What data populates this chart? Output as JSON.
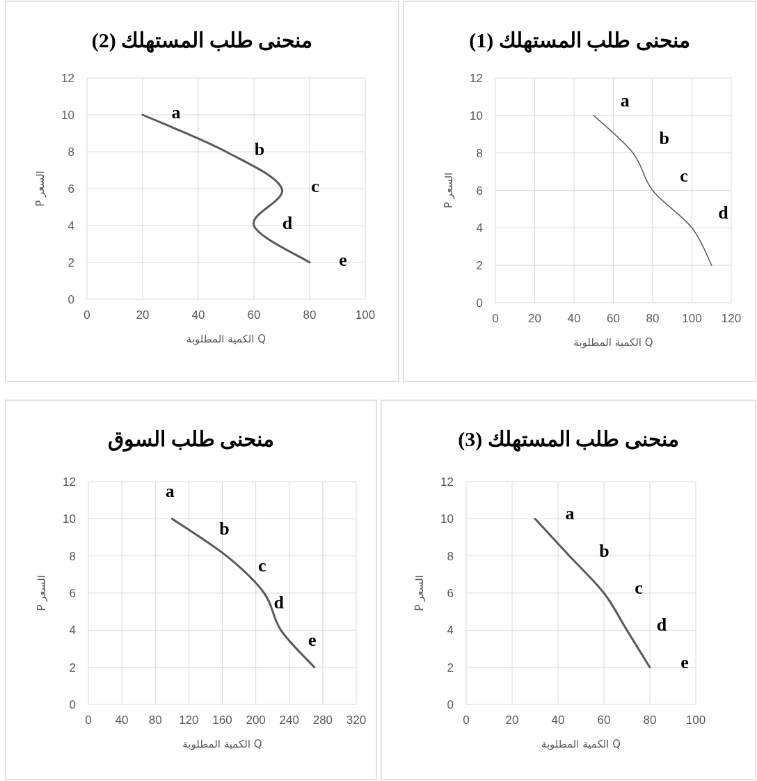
{
  "chart_data": [
    {
      "type": "line",
      "title": "منحنى طلب المستهلك (1)",
      "xlabel": "الكمية المطلوبة Q",
      "ylabel": "السعر P",
      "x": [
        50,
        70,
        80,
        100,
        110
      ],
      "series": [
        {
          "color": "#595959",
          "values": [
            10,
            8,
            6,
            4,
            2
          ]
        }
      ],
      "xlim": [
        0,
        120
      ],
      "xticks": [
        0,
        20,
        40,
        60,
        80,
        100,
        120
      ],
      "ylim": [
        0,
        12
      ],
      "yticks": [
        0,
        2,
        4,
        6,
        8,
        10,
        12
      ],
      "grid": true,
      "annotations": [
        "a",
        "b",
        "c",
        "d"
      ]
    },
    {
      "type": "line",
      "title": "منحنى طلب المستهلك (2)",
      "xlabel": "الكمية المطلوبة Q",
      "ylabel": "السعر P",
      "x": [
        20,
        50,
        70,
        60,
        80
      ],
      "series": [
        {
          "color": "#595959",
          "values": [
            10,
            8,
            6,
            4,
            2
          ]
        }
      ],
      "xlim": [
        0,
        100
      ],
      "xticks": [
        0,
        20,
        40,
        60,
        80,
        100
      ],
      "ylim": [
        0,
        12
      ],
      "yticks": [
        0,
        2,
        4,
        6,
        8,
        10,
        12
      ],
      "grid": true,
      "annotations": [
        "a",
        "b",
        "c",
        "d",
        "e"
      ]
    },
    {
      "type": "line",
      "title": "منحنى طلب المستهلك (3)",
      "xlabel": "الكمية المطلوبة Q",
      "ylabel": "السعر P",
      "x": [
        30,
        45,
        60,
        70,
        80
      ],
      "series": [
        {
          "color": "#595959",
          "values": [
            10,
            8,
            6,
            4,
            2
          ]
        }
      ],
      "xlim": [
        0,
        100
      ],
      "xticks": [
        0,
        20,
        40,
        60,
        80,
        100
      ],
      "ylim": [
        0,
        12
      ],
      "yticks": [
        0,
        2,
        4,
        6,
        8,
        10,
        12
      ],
      "grid": true,
      "annotations": [
        "a",
        "b",
        "c",
        "d",
        "e"
      ]
    },
    {
      "type": "line",
      "title": "منحنى طلب السوق",
      "xlabel": "الكمية المطلوبة Q",
      "ylabel": "السعر P",
      "x": [
        100,
        165,
        210,
        230,
        270
      ],
      "series": [
        {
          "color": "#595959",
          "values": [
            10,
            8,
            6,
            4,
            2
          ]
        }
      ],
      "xlim": [
        0,
        320
      ],
      "xticks": [
        0,
        40,
        80,
        120,
        160,
        200,
        240,
        280,
        320
      ],
      "ylim": [
        0,
        12
      ],
      "yticks": [
        0,
        2,
        4,
        6,
        8,
        10,
        12
      ],
      "grid": true,
      "annotations": [
        "a",
        "b",
        "c",
        "d",
        "e"
      ]
    }
  ]
}
